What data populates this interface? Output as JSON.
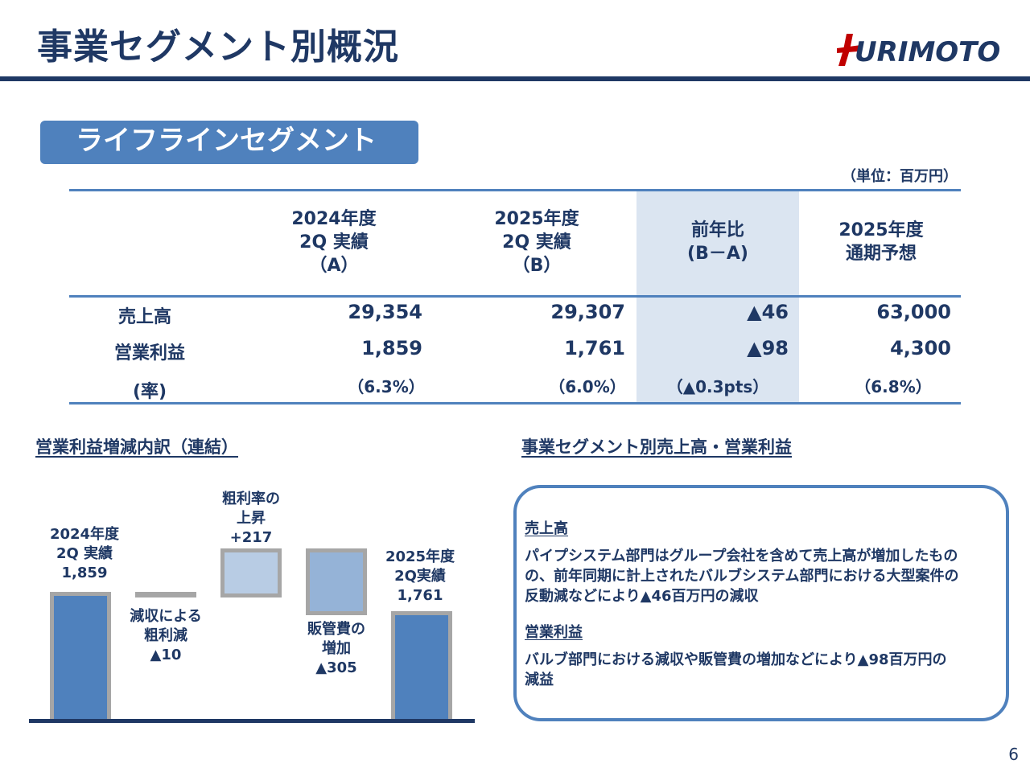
{
  "page_title": "事業セグメント別概況",
  "logo_text": "KURIMOTO",
  "segment_label": "ライフラインセグメント",
  "unit_note": "（単位：百万円）",
  "table": {
    "headers": [
      [
        "2024年度",
        "2Q 実績",
        "（A）"
      ],
      [
        "2025年度",
        "2Q 実績",
        "（B）"
      ],
      [
        "前年比",
        "(B－A)"
      ],
      [
        "2025年度",
        "通期予想"
      ]
    ],
    "rows": [
      {
        "label": "売上高",
        "values": [
          "29,354",
          "29,307",
          "▲46",
          "63,000"
        ]
      },
      {
        "label": "営業利益",
        "values": [
          "1,859",
          "1,761",
          "▲98",
          "4,300"
        ]
      },
      {
        "label": "(率)",
        "values": [
          "（6.3%）",
          "（6.0%）",
          "（▲0.3pts）",
          "（6.8%）"
        ]
      }
    ]
  },
  "breakdown": {
    "title": "営業利益増減内訳（連結）",
    "start_label": [
      "2024年度",
      "2Q 実績",
      "1,859"
    ],
    "step1_label": [
      "減収による",
      "粗利減",
      "▲10"
    ],
    "step2_label": [
      "粗利率の",
      "上昇",
      "+217"
    ],
    "step3_label": [
      "販管費の",
      "増加",
      "▲305"
    ],
    "end_label": [
      "2025年度",
      "2Q実績",
      "1,761"
    ],
    "colors": {
      "total": "#4f81bd",
      "up": "#b8cce4",
      "down": "#95b3d7",
      "frame": "#a6a6a6"
    }
  },
  "segment_summary": {
    "title": "事業セグメント別売上高・営業利益",
    "sales_heading": "売上高",
    "sales_lines": [
      "パイプシステム部門はグループ会社を含めて売上高が増加したもの",
      "の、前年同期に計上されたバルブシステム部門における大型案件の",
      "反動減などにより▲46百万円の減収"
    ],
    "profit_heading": "営業利益",
    "profit_lines": [
      "バルブ部門における減収や販管費の増加などにより▲98百万円の",
      "減益"
    ]
  },
  "page_number": "6"
}
